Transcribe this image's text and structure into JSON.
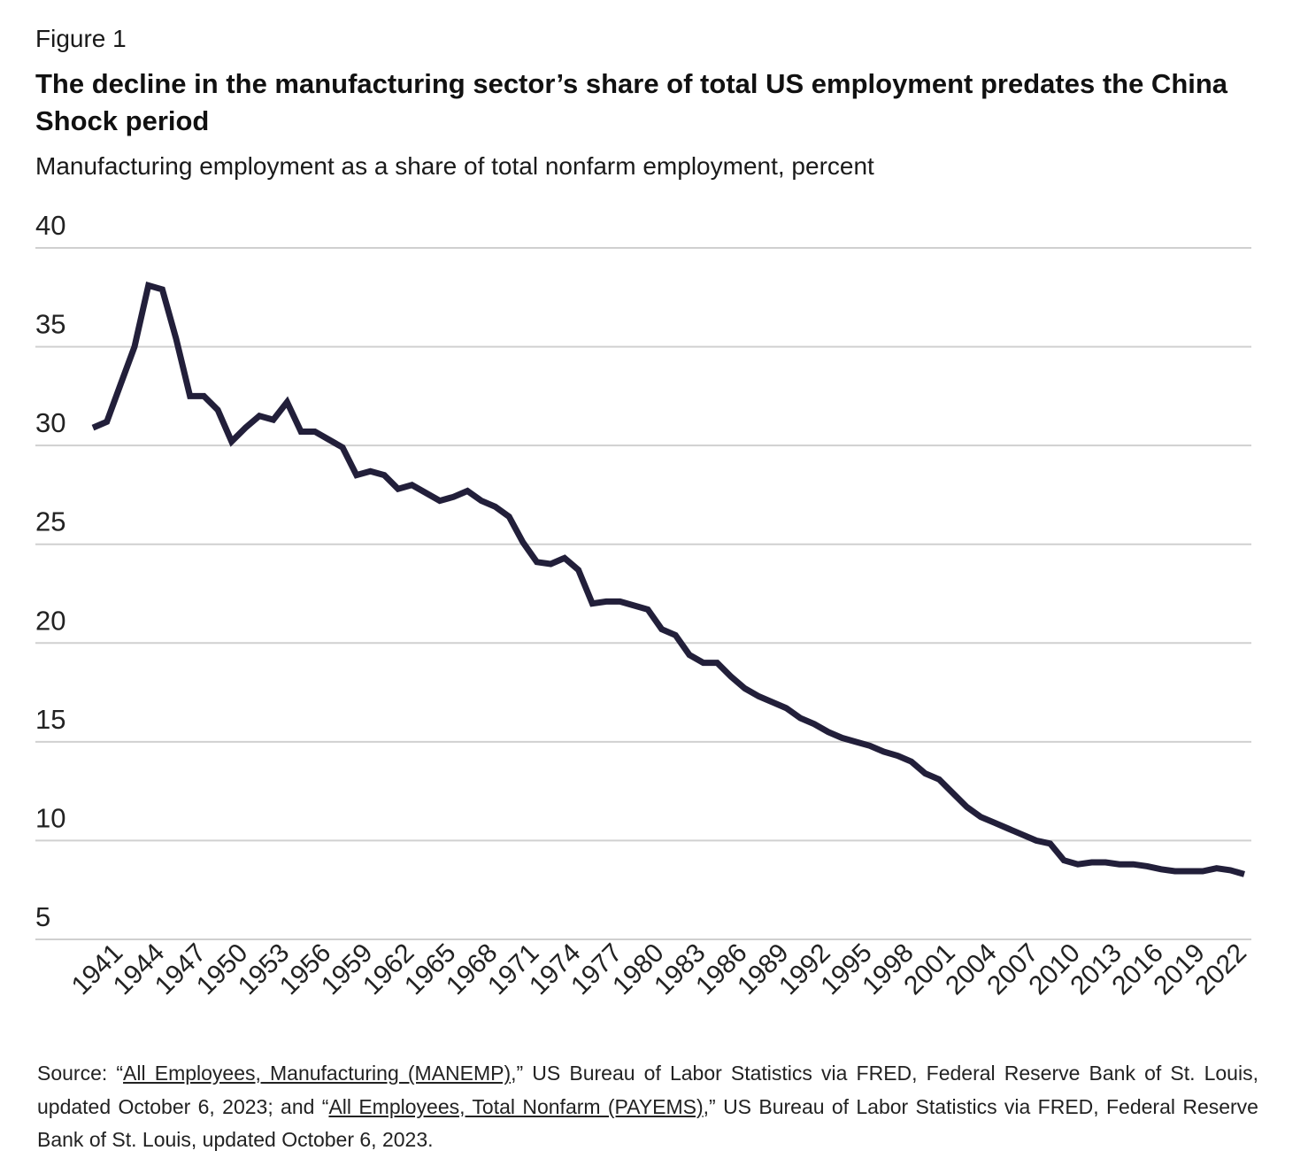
{
  "figure_label": "Figure 1",
  "title": "The decline in the manufacturing sector’s share of total US employment predates the China Shock period",
  "subtitle": "Manufacturing employment as a share of total nonfarm employment, percent",
  "source": {
    "s1": "Source: “",
    "link1": "All Employees, Manufacturing (MANEMP)",
    "s2": ",” US Bureau of Labor Statistics via FRED, Federal Reserve Bank of St. Louis, updated October 6, 2023; and “",
    "link2": "All Employees, Total Nonfarm (PAYEMS)",
    "s3": ",” US Bureau of Labor Statistics via FRED, Federal Reserve Bank of St. Louis, updated October 6, 2023."
  },
  "colors": {
    "line": "#221f3a",
    "grid": "#d0d0d0"
  },
  "chart_data": {
    "type": "line",
    "title": "Manufacturing employment as a share of total nonfarm employment, percent",
    "xlabel": "",
    "ylabel": "percent",
    "ylim": [
      5,
      40
    ],
    "yticks": [
      "5",
      "10",
      "15",
      "20",
      "25",
      "30",
      "35",
      "40"
    ],
    "xticks": [
      "1941",
      "1944",
      "1947",
      "1950",
      "1953",
      "1956",
      "1959",
      "1962",
      "1965",
      "1968",
      "1971",
      "1974",
      "1977",
      "1980",
      "1983",
      "1986",
      "1989",
      "1992",
      "1995",
      "1998",
      "2001",
      "2004",
      "2007",
      "2010",
      "2013",
      "2016",
      "2019",
      "2022"
    ],
    "grid": true,
    "x_start": 1939,
    "x_end": 2022,
    "series": [
      {
        "name": "Manufacturing share",
        "values": [
          30.9,
          31.2,
          33.1,
          35.0,
          38.1,
          37.9,
          35.4,
          32.5,
          32.5,
          31.8,
          30.2,
          30.9,
          31.5,
          31.3,
          32.2,
          30.7,
          30.7,
          30.3,
          29.9,
          28.5,
          28.7,
          28.5,
          27.8,
          28.0,
          27.6,
          27.2,
          27.4,
          27.7,
          27.2,
          26.9,
          26.4,
          25.1,
          24.1,
          24.0,
          24.3,
          23.7,
          22.0,
          22.1,
          22.1,
          21.9,
          21.7,
          20.7,
          20.4,
          19.4,
          19.0,
          19.0,
          18.3,
          17.7,
          17.3,
          17.0,
          16.7,
          16.2,
          15.9,
          15.5,
          15.2,
          15.0,
          14.8,
          14.5,
          14.3,
          14.0,
          13.4,
          13.1,
          12.4,
          11.7,
          11.2,
          10.9,
          10.6,
          10.3,
          10.0,
          9.85,
          9.0,
          8.8,
          8.9,
          8.9,
          8.8,
          8.8,
          8.7,
          8.55,
          8.45,
          8.45,
          8.45,
          8.6,
          8.5,
          8.3
        ]
      }
    ]
  }
}
